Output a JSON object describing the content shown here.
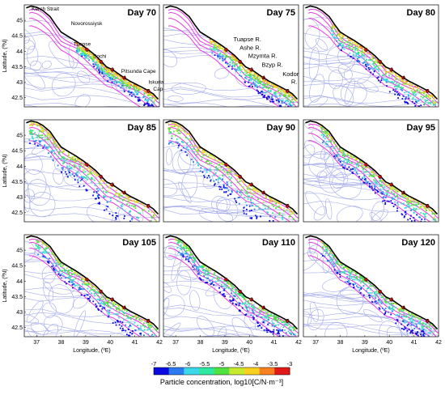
{
  "chart_data": {
    "type": "heatmap",
    "panels": [
      {
        "title": "Day 70"
      },
      {
        "title": "Day 75"
      },
      {
        "title": "Day 80"
      },
      {
        "title": "Day 85"
      },
      {
        "title": "Day 90"
      },
      {
        "title": "Day 95"
      },
      {
        "title": "Day 105"
      },
      {
        "title": "Day 110"
      },
      {
        "title": "Day 120"
      }
    ],
    "xlabel": "Longitude, (ºE)",
    "ylabel": "Latitude, (ºN)",
    "xlim": [
      36.5,
      42
    ],
    "ylim": [
      42.2,
      45.5
    ],
    "xticks": [
      "37",
      "38",
      "39",
      "40",
      "41",
      "42"
    ],
    "xtick_values": [
      37,
      38,
      39,
      40,
      41,
      42
    ],
    "yticks": [
      "42.5",
      "43",
      "43.5",
      "44",
      "44.5",
      "45"
    ],
    "ytick_values": [
      42.5,
      43,
      43.5,
      44,
      44.5,
      45
    ],
    "annotations_day70": [
      "Kerch Strait",
      "Novorossiysk",
      "Tuapse",
      "Sochi",
      "Pitsunda Cape",
      "Iskuria",
      "Cape"
    ],
    "annotations_day75": [
      "Tuapse R.",
      "Ashe R.",
      "Mzymta R.",
      "Bzyp R.",
      "Kodor",
      "R."
    ],
    "coast_markers": [
      "1",
      "2",
      "3",
      "4",
      "5"
    ],
    "colorbar": {
      "label": "Particle concentration, log10[C/N·m⁻³]",
      "range": [
        -7,
        -3
      ],
      "ticks": [
        "-7",
        "-6.5",
        "-6",
        "-5.5",
        "-5",
        "-4.5",
        "-4",
        "-3.5",
        "-3"
      ],
      "colors": [
        "#0a0ae0",
        "#2a7af0",
        "#3ad8e8",
        "#2ee8a0",
        "#50e040",
        "#c8e830",
        "#f8d020",
        "#f88020",
        "#e01818"
      ]
    },
    "colors": {
      "streamlines": "#9aa2e8",
      "isobaths": "#e83ce0",
      "coast": "#000000"
    }
  }
}
